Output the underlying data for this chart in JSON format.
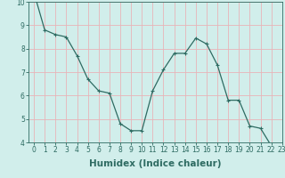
{
  "x": [
    0,
    1,
    2,
    3,
    4,
    5,
    6,
    7,
    8,
    9,
    10,
    11,
    12,
    13,
    14,
    15,
    16,
    17,
    18,
    19,
    20,
    21,
    22,
    23
  ],
  "y": [
    10.4,
    8.8,
    8.6,
    8.5,
    7.7,
    6.7,
    6.2,
    6.1,
    4.8,
    4.5,
    4.5,
    6.2,
    7.1,
    7.8,
    7.8,
    8.45,
    8.2,
    7.3,
    5.8,
    5.8,
    4.7,
    4.6,
    3.85,
    3.8
  ],
  "line_color": "#2e6b62",
  "marker": "+",
  "marker_size": 3,
  "marker_linewidth": 0.8,
  "bg_color": "#d1eeeb",
  "grid_color": "#e8b4b8",
  "xlabel": "Humidex (Indice chaleur)",
  "ylim": [
    4,
    10
  ],
  "xlim": [
    -0.5,
    23
  ],
  "yticks": [
    4,
    5,
    6,
    7,
    8,
    9,
    10
  ],
  "xticks": [
    0,
    1,
    2,
    3,
    4,
    5,
    6,
    7,
    8,
    9,
    10,
    11,
    12,
    13,
    14,
    15,
    16,
    17,
    18,
    19,
    20,
    21,
    22,
    23
  ],
  "xtick_labels": [
    "0",
    "1",
    "2",
    "3",
    "4",
    "5",
    "6",
    "7",
    "8",
    "9",
    "10",
    "11",
    "12",
    "13",
    "14",
    "15",
    "16",
    "17",
    "18",
    "19",
    "20",
    "21",
    "22",
    "23"
  ],
  "tick_label_fontsize": 5.5,
  "xlabel_fontsize": 7.5,
  "xlabel_fontweight": "bold",
  "linewidth": 0.9
}
